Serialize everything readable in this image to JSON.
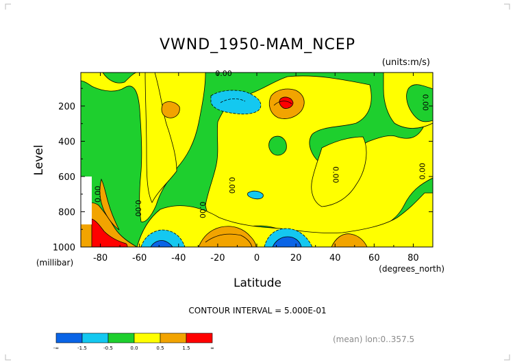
{
  "chart_data": {
    "type": "heatmap",
    "title": "VWND_1950-MAM_NCEP",
    "units": "(units:m/s)",
    "xlabel": "Latitude",
    "xunits": "(degrees_north)",
    "ylabel": "Level",
    "yunits": "(millibar)",
    "xlim": [
      -90,
      90
    ],
    "ylim": [
      1000,
      10
    ],
    "x_ticks": [
      -80,
      -60,
      -40,
      -20,
      0,
      20,
      40,
      60,
      80
    ],
    "y_ticks": [
      200,
      400,
      600,
      800,
      1000
    ],
    "contour_interval_text": "CONTOUR INTERVAL = 5.000E-01",
    "contour_labels": [
      "0.00",
      "0.00",
      "0.00",
      "0.00",
      "0.00",
      "0.00",
      "0.00",
      "0.00",
      "0.00"
    ],
    "footer_text": "(mean) lon:0..357.5",
    "colorbar": {
      "ticks": [
        "-∞",
        "-1.5",
        "-0.5",
        "0.0",
        "0.5",
        "1.5",
        "∞"
      ],
      "colors": [
        "#0a64e6",
        "#14c8f0",
        "#1ecf2e",
        "#ffff00",
        "#f2a400",
        "#ff0000"
      ]
    },
    "regions": [
      {
        "level": "positive_0_to_0.5",
        "color": "#ffff00",
        "approx_lat_range": [
          -73,
          -42
        ],
        "approx_pressure_range": [
          60,
          760
        ]
      },
      {
        "level": "positive_0_to_0.5",
        "color": "#ffff00",
        "approx_lat_range": [
          -30,
          40
        ],
        "approx_pressure_range": [
          120,
          780
        ]
      },
      {
        "level": "positive_0.5_to_1.5",
        "color": "#f2a400",
        "approx_lat_range": [
          -10,
          30
        ],
        "approx_pressure_range": [
          110,
          210
        ]
      },
      {
        "level": "above_1.5",
        "color": "#ff0000",
        "approx_lat_range": [
          10,
          15
        ],
        "approx_pressure_range": [
          140,
          180
        ]
      },
      {
        "level": "negative_-1.5_to_-0.5",
        "color": "#14c8f0",
        "approx_lat_range": [
          -15,
          0
        ],
        "approx_pressure_range": [
          120,
          220
        ]
      },
      {
        "level": "negative_-1.5_to_-0.5",
        "color": "#14c8f0",
        "approx_lat_range": [
          -60,
          -40
        ],
        "approx_pressure_range": [
          920,
          1000
        ]
      },
      {
        "level": "below_-1.5",
        "color": "#0a64e6",
        "approx_lat_range": [
          8,
          18
        ],
        "approx_pressure_range": [
          950,
          1000
        ]
      },
      {
        "level": "positive_0.5_to_1.5",
        "color": "#f2a400",
        "approx_lat_range": [
          -25,
          -5
        ],
        "approx_pressure_range": [
          880,
          1000
        ]
      },
      {
        "level": "above_1.5",
        "color": "#ff0000",
        "approx_lat_range": [
          -88,
          -78
        ],
        "approx_pressure_range": [
          900,
          1000
        ]
      }
    ]
  }
}
